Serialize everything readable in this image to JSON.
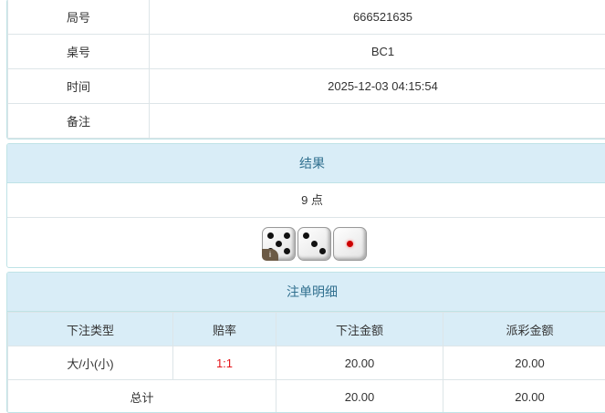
{
  "info": [
    {
      "label": "局号",
      "value": "666521635"
    },
    {
      "label": "桌号",
      "value": "BC1"
    },
    {
      "label": "时间",
      "value": "2025-12-03 04:15:54"
    },
    {
      "label": "备注",
      "value": ""
    }
  ],
  "result": {
    "title": "结果",
    "points": "9 点",
    "dice": [
      5,
      3,
      1
    ],
    "info_badge": "i"
  },
  "bets": {
    "title": "注单明细",
    "headers": [
      "下注类型",
      "赔率",
      "下注金额",
      "派彩金额"
    ],
    "rows": [
      {
        "type": "大/小(小)",
        "odds": "1:1",
        "amount": "20.00",
        "payout": "20.00"
      }
    ],
    "total": {
      "label": "总计",
      "amount": "20.00",
      "payout": "20.00"
    }
  },
  "colors": {
    "header_bg": "#d9edf7",
    "header_text": "#31708f",
    "odds": "#e4161b"
  }
}
